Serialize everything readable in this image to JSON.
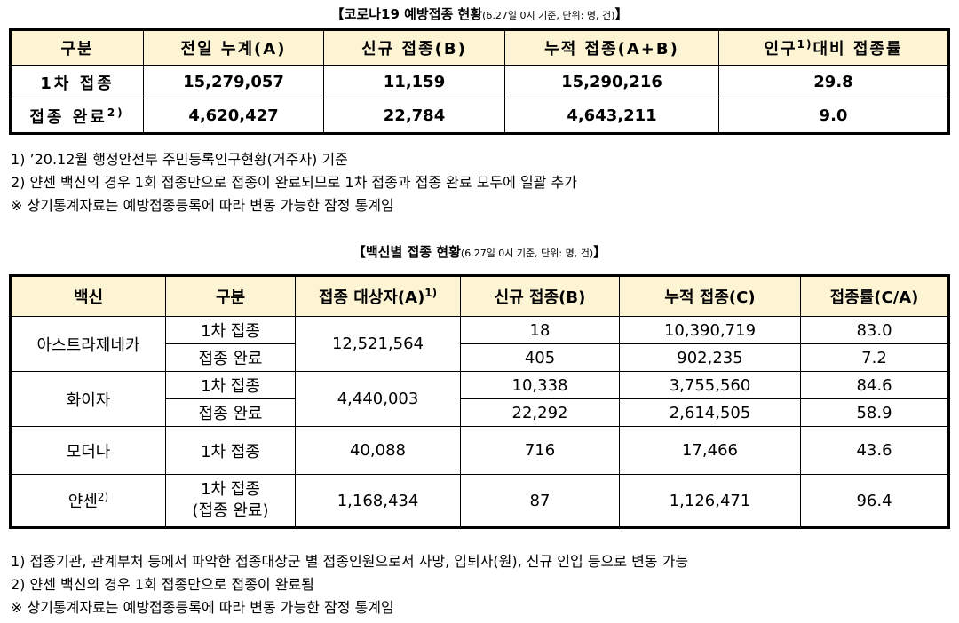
{
  "summary": {
    "title": "【코로나19 예방접종 현황",
    "title_note": "(6.27일 0시 기준, 단위: 명, 건)",
    "title_close": "】",
    "headers": [
      "구분",
      "전일 누계(A)",
      "신규 접종(B)",
      "누적 접종(A+B)",
      "인구",
      "1)",
      "대비 접종률"
    ],
    "rows": [
      {
        "label": "1차 접종",
        "sup": "",
        "prev": "15,279,057",
        "new": "11,159",
        "cum": "15,290,216",
        "rate": "29.8"
      },
      {
        "label": "접종 완료",
        "sup": "2)",
        "prev": "4,620,427",
        "new": "22,784",
        "cum": "4,643,211",
        "rate": "9.0"
      }
    ],
    "notes": [
      "1) ’20.12월 행정안전부 주민등록인구현황(거주자) 기준",
      "2) 얀센 백신의 경우 1회 접종만으로 접종이 완료되므로 1차 접종과 접종 완료 모두에 일괄 추가",
      "※ 상기통계자료는 예방접종등록에 따라 변동 가능한 잠정 통계임"
    ]
  },
  "by_vaccine": {
    "title": "【백신별 접종 현황",
    "title_note": "(6.27일 0시 기준, 단위: 명, 건)",
    "title_close": "】",
    "headers": [
      "백신",
      "구분",
      "접종 대상자(A)",
      "1)",
      "신규 접종(B)",
      "누적 접종(C)",
      "접종률(C/A)"
    ],
    "vaccines": {
      "az": {
        "name": "아스트라제네카",
        "target": "12,521,564",
        "d1": {
          "label": "1차 접종",
          "new": "18",
          "cum": "10,390,719",
          "rate": "83.0"
        },
        "full": {
          "label": "접종 완료",
          "new": "405",
          "cum": "902,235",
          "rate": "7.2"
        }
      },
      "pfizer": {
        "name": "화이자",
        "target": "4,440,003",
        "d1": {
          "label": "1차 접종",
          "new": "10,338",
          "cum": "3,755,560",
          "rate": "84.6"
        },
        "full": {
          "label": "접종 완료",
          "new": "22,292",
          "cum": "2,614,505",
          "rate": "58.9"
        }
      },
      "moderna": {
        "name": "모더나",
        "label": "1차 접종",
        "target": "40,088",
        "new": "716",
        "cum": "17,466",
        "rate": "43.6"
      },
      "janssen": {
        "name": "얀센",
        "sup": "2)",
        "label1": "1차 접종",
        "label2": "(접종 완료)",
        "target": "1,168,434",
        "new": "87",
        "cum": "1,126,471",
        "rate": "96.4"
      }
    },
    "notes": [
      "1) 접종기관, 관계부처 등에서 파악한 접종대상군 별 접종인원으로서 사망, 입퇴사(원), 신규 인입 등으로 변동 가능",
      "2) 얀센 백신의 경우 1회 접종만으로 접종이 완료됨",
      "※ 상기통계자료는 예방접종등록에 따라 변동 가능한 잠정 통계임"
    ]
  }
}
